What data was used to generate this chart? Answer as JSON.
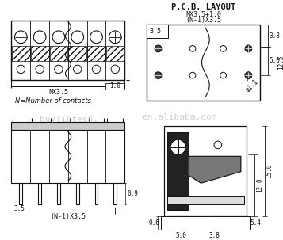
{
  "bg_color": "#ffffff",
  "lc": "#111111",
  "watermark1": "buylintech.",
  "watermark2": "en.alibaba.com",
  "title_pcb": "P.C.B. LAYOUT",
  "dim_nx35_10": "NX3.5+1.0",
  "dim_n1x35_top": "(N-1)X3.5",
  "dim_nx35": "NX3.5",
  "dim_10": "1.0",
  "dim_35": "3.5",
  "dim_n_contacts": "N=Number of contacts",
  "dim_n1x35_bot": "(N-1)X3.5",
  "dim_09": "0.9",
  "dim_35b": "3.5",
  "dim_38": "3.8",
  "dim_50": "5.0",
  "dim_125": "12.5",
  "dim_06": "0.6",
  "dim_54": "5.4",
  "dim_50b": "5.0",
  "dim_38b": "3.8",
  "dim_120": "12.0",
  "dim_150": "15.0",
  "dim_dia11": "φ1.1"
}
